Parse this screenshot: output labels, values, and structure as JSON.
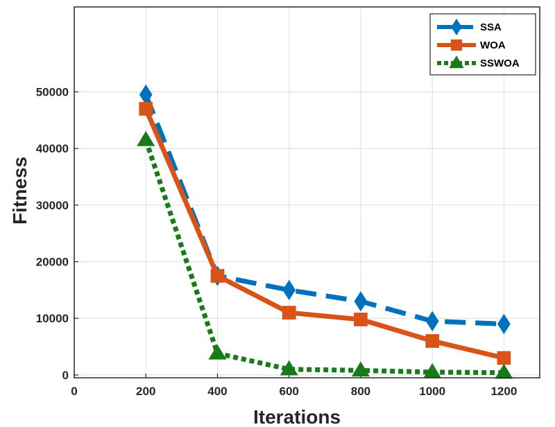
{
  "chart_data": {
    "type": "line",
    "title": "",
    "xlabel": "Iterations",
    "ylabel": "Fitness",
    "xlim": [
      0,
      1300
    ],
    "ylim": [
      -500,
      65000
    ],
    "x": [
      200,
      400,
      600,
      800,
      1000,
      1200
    ],
    "xticks": [
      0,
      200,
      400,
      600,
      800,
      1000,
      1200
    ],
    "xtick_labels": [
      "0",
      "200",
      "400",
      "600",
      "800",
      "1000",
      "1200"
    ],
    "yticks": [
      0,
      10000,
      20000,
      30000,
      40000,
      50000
    ],
    "ytick_labels": [
      "0",
      "10000",
      "20000",
      "30000",
      "40000",
      "50000"
    ],
    "grid": true,
    "legend_position": "top-right",
    "series": [
      {
        "name": "SSA",
        "color": "#0072BD",
        "line_style": "dashed",
        "marker": "diamond",
        "values": [
          49500,
          17500,
          15000,
          13000,
          9500,
          9000
        ]
      },
      {
        "name": "WOA",
        "color": "#D95319",
        "line_style": "solid",
        "marker": "square",
        "values": [
          47000,
          17500,
          11000,
          9800,
          6000,
          3000
        ]
      },
      {
        "name": "SSWOA",
        "color": "#1A7A1A",
        "line_style": "dotted",
        "marker": "triangle",
        "values": [
          41500,
          3800,
          1000,
          800,
          500,
          400
        ]
      }
    ]
  }
}
